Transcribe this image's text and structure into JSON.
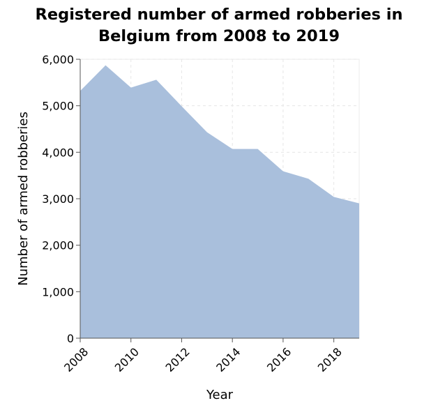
{
  "title_line1": "Registered number of armed robberies in",
  "title_line2": "Belgium from 2008 to 2019",
  "chart_data": {
    "type": "area",
    "title": "Registered number of armed robberies in Belgium from 2008 to 2019",
    "xlabel": "Year",
    "ylabel": "Number of armed robberies",
    "x": [
      2008,
      2009,
      2010,
      2011,
      2012,
      2013,
      2014,
      2015,
      2016,
      2017,
      2018,
      2019
    ],
    "series": [
      {
        "values": [
          5320,
          5870,
          5390,
          5560,
          4990,
          4430,
          4070,
          4070,
          3590,
          3430,
          3040,
          2900
        ]
      }
    ],
    "xlim": [
      2008,
      2019
    ],
    "ylim": [
      0,
      6000
    ],
    "x_ticks": [
      "2008",
      "2010",
      "2012",
      "2014",
      "2016",
      "2018"
    ],
    "y_ticks": [
      "0",
      "1,000",
      "2,000",
      "3,000",
      "4,000",
      "5,000",
      "6,000"
    ],
    "fill_color": "#a9bfdc",
    "grid": true,
    "legend": "none"
  }
}
